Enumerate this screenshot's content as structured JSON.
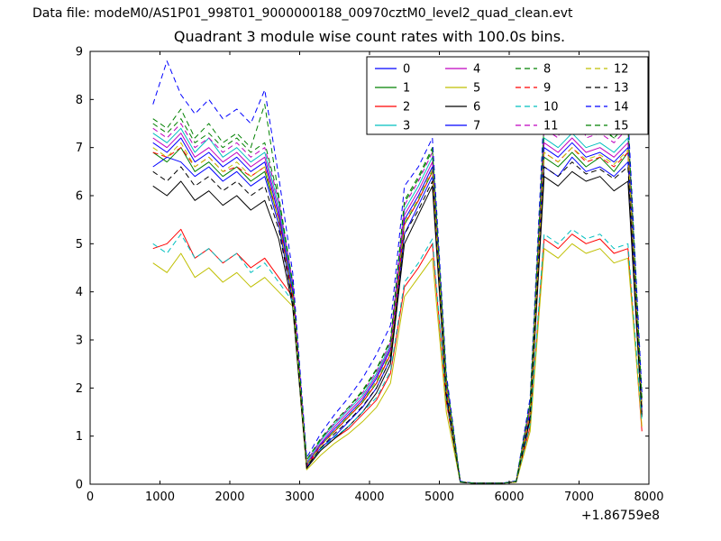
{
  "header": {
    "data_file_label": "Data file: modeM0/AS1P01_998T01_9000000188_00970cztM0_level2_quad_clean.evt"
  },
  "chart_data": {
    "type": "line",
    "title": "Quadrant 3 module wise count rates with 100.0s bins.",
    "xlabel": "",
    "ylabel": "",
    "x_offset_label": "+1.86759e8",
    "xlim": [
      0,
      8000
    ],
    "ylim": [
      0,
      9
    ],
    "xticks": [
      0,
      1000,
      2000,
      3000,
      4000,
      5000,
      6000,
      7000,
      8000
    ],
    "yticks": [
      0,
      1,
      2,
      3,
      4,
      5,
      6,
      7,
      8,
      9
    ],
    "grid": false,
    "legend_position": "upper center-right, 4 columns",
    "background": "#ffffff",
    "x": [
      900,
      1100,
      1300,
      1500,
      1700,
      1900,
      2100,
      2300,
      2500,
      2700,
      2900,
      3100,
      3300,
      3500,
      3700,
      3900,
      4100,
      4300,
      4500,
      4700,
      4900,
      5100,
      5300,
      5500,
      5700,
      5900,
      6100,
      6300,
      6500,
      6700,
      6900,
      7100,
      7300,
      7500,
      7700,
      7900
    ],
    "series": [
      {
        "name": "0",
        "color": "#0000ff",
        "linestyle": "solid",
        "values": [
          6.6,
          6.8,
          6.7,
          6.4,
          6.6,
          6.3,
          6.5,
          6.2,
          6.4,
          5.4,
          3.8,
          0.35,
          0.75,
          1.0,
          1.3,
          1.6,
          2.0,
          2.6,
          5.2,
          5.8,
          6.4,
          1.9,
          0.04,
          0.02,
          0.02,
          0.02,
          0.05,
          1.4,
          6.6,
          6.4,
          6.8,
          6.5,
          6.6,
          6.4,
          6.7,
          1.5
        ]
      },
      {
        "name": "1",
        "color": "#008000",
        "linestyle": "solid",
        "values": [
          6.9,
          6.7,
          7.0,
          6.5,
          6.7,
          6.4,
          6.6,
          6.3,
          6.5,
          5.5,
          3.9,
          0.4,
          0.8,
          1.1,
          1.4,
          1.7,
          2.1,
          2.7,
          5.4,
          5.9,
          6.5,
          2.0,
          0.05,
          0.02,
          0.02,
          0.02,
          0.05,
          1.5,
          6.8,
          6.6,
          6.9,
          6.6,
          6.8,
          6.5,
          6.9,
          1.6
        ]
      },
      {
        "name": "2",
        "color": "#ff0000",
        "linestyle": "solid",
        "values": [
          4.9,
          5.0,
          5.3,
          4.7,
          4.9,
          4.6,
          4.8,
          4.5,
          4.7,
          4.3,
          3.9,
          0.4,
          0.7,
          0.95,
          1.15,
          1.45,
          1.75,
          2.3,
          4.1,
          4.5,
          5.0,
          1.7,
          0.05,
          0.02,
          0.02,
          0.02,
          0.05,
          1.2,
          5.1,
          4.9,
          5.2,
          5.0,
          5.1,
          4.8,
          4.9,
          1.1
        ]
      },
      {
        "name": "3",
        "color": "#00bfbf",
        "linestyle": "solid",
        "values": [
          7.3,
          7.1,
          7.4,
          6.9,
          7.2,
          6.8,
          7.0,
          6.7,
          6.9,
          5.8,
          4.1,
          0.45,
          0.9,
          1.25,
          1.55,
          1.85,
          2.3,
          2.9,
          5.7,
          6.2,
          6.8,
          2.1,
          0.05,
          0.02,
          0.02,
          0.02,
          0.06,
          1.6,
          7.2,
          7.0,
          7.3,
          7.0,
          7.1,
          6.9,
          7.2,
          1.7
        ]
      },
      {
        "name": "4",
        "color": "#bf00bf",
        "linestyle": "solid",
        "values": [
          7.2,
          7.0,
          7.3,
          6.8,
          7.0,
          6.7,
          6.9,
          6.6,
          6.8,
          5.7,
          4.0,
          0.42,
          0.85,
          1.2,
          1.5,
          1.8,
          2.25,
          2.85,
          5.6,
          6.1,
          6.7,
          2.05,
          0.05,
          0.02,
          0.02,
          0.02,
          0.06,
          1.55,
          7.1,
          6.9,
          7.2,
          6.9,
          7.0,
          6.8,
          7.1,
          1.65
        ]
      },
      {
        "name": "5",
        "color": "#bfbf00",
        "linestyle": "solid",
        "values": [
          4.6,
          4.4,
          4.8,
          4.3,
          4.5,
          4.2,
          4.4,
          4.1,
          4.3,
          4.0,
          3.7,
          0.3,
          0.6,
          0.85,
          1.05,
          1.3,
          1.6,
          2.1,
          3.9,
          4.3,
          4.7,
          1.5,
          0.04,
          0.02,
          0.02,
          0.02,
          0.04,
          1.1,
          4.9,
          4.7,
          5.0,
          4.8,
          4.9,
          4.6,
          4.7,
          1.2
        ]
      },
      {
        "name": "6",
        "color": "#000000",
        "linestyle": "solid",
        "values": [
          6.2,
          6.0,
          6.3,
          5.9,
          6.1,
          5.8,
          6.0,
          5.7,
          5.9,
          5.1,
          3.7,
          0.33,
          0.7,
          0.95,
          1.2,
          1.5,
          1.9,
          2.5,
          5.0,
          5.6,
          6.2,
          1.8,
          0.04,
          0.02,
          0.02,
          0.02,
          0.05,
          1.35,
          6.4,
          6.2,
          6.5,
          6.3,
          6.4,
          6.1,
          6.3,
          1.4
        ]
      },
      {
        "name": "7",
        "color": "#0000ff",
        "linestyle": "solid",
        "values": [
          7.1,
          6.9,
          7.2,
          6.7,
          6.9,
          6.6,
          6.8,
          6.5,
          6.7,
          5.6,
          4.0,
          0.4,
          0.82,
          1.15,
          1.45,
          1.75,
          2.2,
          2.8,
          5.5,
          6.0,
          6.6,
          2.0,
          0.05,
          0.02,
          0.02,
          0.02,
          0.05,
          1.5,
          7.0,
          6.8,
          7.1,
          6.8,
          6.9,
          6.7,
          7.0,
          1.6
        ]
      },
      {
        "name": "8",
        "color": "#008000",
        "linestyle": "dashed",
        "values": [
          7.6,
          7.4,
          7.8,
          7.2,
          7.5,
          7.1,
          7.3,
          7.0,
          7.9,
          6.0,
          4.2,
          0.5,
          0.95,
          1.3,
          1.6,
          1.95,
          2.4,
          3.0,
          5.9,
          6.4,
          7.0,
          2.2,
          0.05,
          0.02,
          0.02,
          0.02,
          0.06,
          1.7,
          7.5,
          7.3,
          7.6,
          7.3,
          7.4,
          7.2,
          7.5,
          1.8
        ]
      },
      {
        "name": "9",
        "color": "#ff0000",
        "linestyle": "dashed",
        "values": [
          6.9,
          6.8,
          7.0,
          6.6,
          6.8,
          6.5,
          6.6,
          6.4,
          6.6,
          5.5,
          3.9,
          0.38,
          0.8,
          1.1,
          1.4,
          1.7,
          2.1,
          2.7,
          5.4,
          5.9,
          6.5,
          1.95,
          0.05,
          0.02,
          0.02,
          0.02,
          0.05,
          1.45,
          6.9,
          6.7,
          7.0,
          6.7,
          6.8,
          6.6,
          6.9,
          1.55
        ]
      },
      {
        "name": "10",
        "color": "#00bfbf",
        "linestyle": "dashed",
        "values": [
          5.0,
          4.8,
          5.2,
          4.7,
          4.9,
          4.6,
          4.8,
          4.4,
          4.6,
          4.2,
          3.8,
          0.38,
          0.72,
          0.98,
          1.2,
          1.5,
          1.8,
          2.35,
          4.2,
          4.6,
          5.1,
          1.75,
          0.05,
          0.02,
          0.02,
          0.02,
          0.05,
          1.25,
          5.2,
          5.0,
          5.3,
          5.1,
          5.2,
          4.9,
          5.0,
          1.3
        ]
      },
      {
        "name": "11",
        "color": "#bf00bf",
        "linestyle": "dashed",
        "values": [
          7.4,
          7.2,
          7.5,
          7.0,
          7.2,
          6.9,
          7.1,
          6.8,
          7.0,
          5.9,
          4.2,
          0.48,
          0.92,
          1.28,
          1.58,
          1.9,
          2.35,
          2.95,
          5.8,
          6.3,
          6.9,
          2.15,
          0.05,
          0.02,
          0.02,
          0.02,
          0.06,
          1.65,
          7.4,
          7.2,
          8.3,
          7.2,
          7.3,
          7.1,
          7.4,
          1.75
        ]
      },
      {
        "name": "12",
        "color": "#bfbf00",
        "linestyle": "dashed",
        "values": [
          7.0,
          6.8,
          7.1,
          6.6,
          6.8,
          6.5,
          6.7,
          6.4,
          6.6,
          5.5,
          3.9,
          0.4,
          0.8,
          1.12,
          1.42,
          1.72,
          2.15,
          2.75,
          5.45,
          5.95,
          6.55,
          2.0,
          0.05,
          0.02,
          0.02,
          0.02,
          0.05,
          1.5,
          6.9,
          6.7,
          7.0,
          6.75,
          6.85,
          6.65,
          6.95,
          1.6
        ]
      },
      {
        "name": "13",
        "color": "#000000",
        "linestyle": "dashed",
        "values": [
          6.5,
          6.3,
          6.6,
          6.2,
          6.4,
          6.1,
          6.3,
          6.0,
          6.2,
          5.3,
          3.8,
          0.36,
          0.75,
          1.05,
          1.32,
          1.62,
          2.0,
          2.6,
          5.2,
          5.7,
          6.3,
          1.85,
          0.04,
          0.02,
          0.02,
          0.02,
          0.05,
          1.4,
          6.6,
          6.4,
          6.7,
          6.45,
          6.55,
          6.35,
          6.6,
          1.45
        ]
      },
      {
        "name": "14",
        "color": "#0000ff",
        "linestyle": "dashed",
        "values": [
          7.9,
          8.8,
          8.1,
          7.7,
          8.0,
          7.6,
          7.8,
          7.5,
          8.2,
          6.4,
          4.4,
          0.55,
          1.05,
          1.45,
          1.8,
          2.2,
          2.7,
          3.3,
          6.2,
          6.6,
          7.2,
          2.3,
          0.06,
          0.02,
          0.02,
          0.02,
          0.07,
          1.8,
          7.8,
          7.6,
          8.6,
          7.5,
          7.7,
          7.4,
          7.7,
          1.9
        ]
      },
      {
        "name": "15",
        "color": "#008000",
        "linestyle": "dashed",
        "values": [
          7.5,
          7.3,
          7.6,
          7.1,
          7.3,
          7.0,
          7.2,
          6.9,
          7.1,
          5.95,
          4.15,
          0.5,
          0.93,
          1.3,
          1.6,
          1.92,
          2.38,
          2.98,
          5.85,
          6.35,
          6.95,
          2.18,
          0.05,
          0.02,
          0.02,
          0.02,
          0.06,
          1.68,
          7.45,
          7.25,
          7.55,
          7.3,
          7.45,
          7.2,
          7.5,
          1.78
        ]
      }
    ]
  }
}
